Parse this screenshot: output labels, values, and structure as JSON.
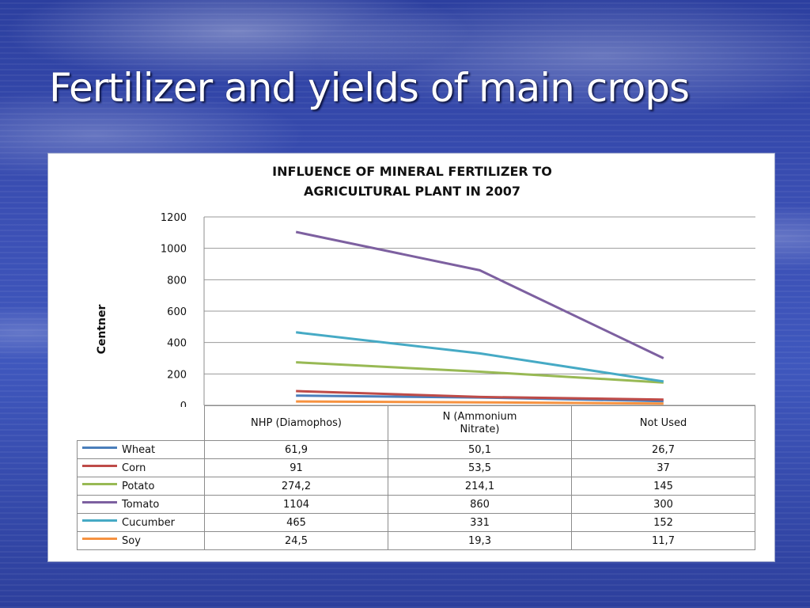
{
  "slide": {
    "title": "Fertilizer and yields of main crops"
  },
  "chart_data": {
    "type": "line",
    "title_lines": [
      "INFLUENCE OF MINERAL FERTILIZER TO",
      "AGRICULTURAL PLANT IN 2007"
    ],
    "ylabel": "Centner",
    "ylim": [
      0,
      1200
    ],
    "yticks": [
      0,
      200,
      400,
      600,
      800,
      1000,
      1200
    ],
    "ytick_labels": [
      "0",
      "200",
      "400",
      "600",
      "800",
      "1000",
      "1200"
    ],
    "grid": true,
    "categories": [
      "NHP (Diamophos)",
      "N (Ammonium Nitrate)",
      "Not Used"
    ],
    "category_lines": [
      [
        "NHP (Diamophos)"
      ],
      [
        "N (Ammonium",
        "Nitrate)"
      ],
      [
        "Not Used"
      ]
    ],
    "series": [
      {
        "name": "Wheat",
        "color": "#4a7ebb",
        "values": [
          61.9,
          50.1,
          26.7
        ],
        "labels": [
          "61,9",
          "50,1",
          "26,7"
        ]
      },
      {
        "name": "Corn",
        "color": "#be4b48",
        "values": [
          91,
          53.5,
          37
        ],
        "labels": [
          "91",
          "53,5",
          "37"
        ]
      },
      {
        "name": "Potato",
        "color": "#98b954",
        "values": [
          274.2,
          214.1,
          145
        ],
        "labels": [
          "274,2",
          "214,1",
          "145"
        ]
      },
      {
        "name": "Tomato",
        "color": "#7d60a0",
        "values": [
          1104,
          860,
          300
        ],
        "labels": [
          "1104",
          "860",
          "300"
        ]
      },
      {
        "name": "Cucumber",
        "color": "#46aac5",
        "values": [
          465,
          331,
          152
        ],
        "labels": [
          "465",
          "331",
          "152"
        ]
      },
      {
        "name": "Soy",
        "color": "#f69240",
        "values": [
          24.5,
          19.3,
          11.7
        ],
        "labels": [
          "24,5",
          "19,3",
          "11,7"
        ]
      }
    ]
  }
}
